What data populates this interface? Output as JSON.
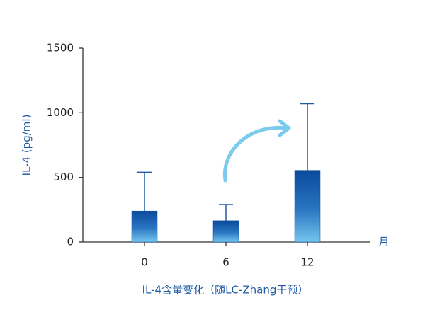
{
  "chart_data": {
    "type": "bar",
    "ylabel": "IL-4 (pg/ml)",
    "xlabel": "IL-4含量变化（随LC-Zhang干预）",
    "x_unit": "月",
    "categories": [
      "0",
      "6",
      "12"
    ],
    "values": [
      240,
      165,
      555
    ],
    "errors": [
      300,
      125,
      515
    ],
    "color": "#0a4a9c",
    "ylim": [
      0,
      1500
    ],
    "yticks": [
      0,
      500,
      1000,
      1500
    ]
  }
}
